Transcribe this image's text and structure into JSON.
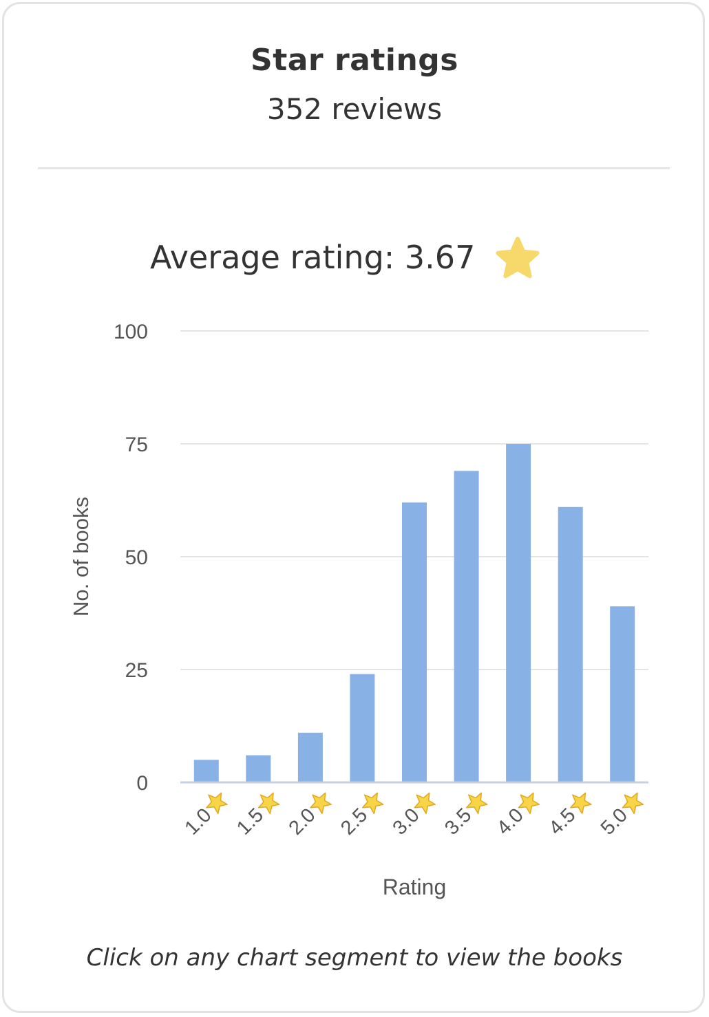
{
  "header": {
    "title": "Star ratings",
    "reviews": "352 reviews"
  },
  "average": {
    "label": "Average rating: 3.67",
    "icon": "star-icon",
    "star_color": "#f6d86b"
  },
  "footer": {
    "hint": "Click on any chart segment to view the books"
  },
  "chart_data": {
    "type": "bar",
    "categories": [
      "1.0",
      "1.5",
      "2.0",
      "2.5",
      "3.0",
      "3.5",
      "4.0",
      "4.5",
      "5.0"
    ],
    "category_icon": "star-icon",
    "values": [
      5,
      6,
      11,
      24,
      62,
      69,
      75,
      61,
      39
    ],
    "xlabel": "Rating",
    "ylabel": "No. of books",
    "ylim": [
      0,
      100
    ],
    "yticks": [
      0,
      25,
      50,
      75,
      100
    ],
    "grid": true,
    "bar_color": "#88b2e5"
  }
}
